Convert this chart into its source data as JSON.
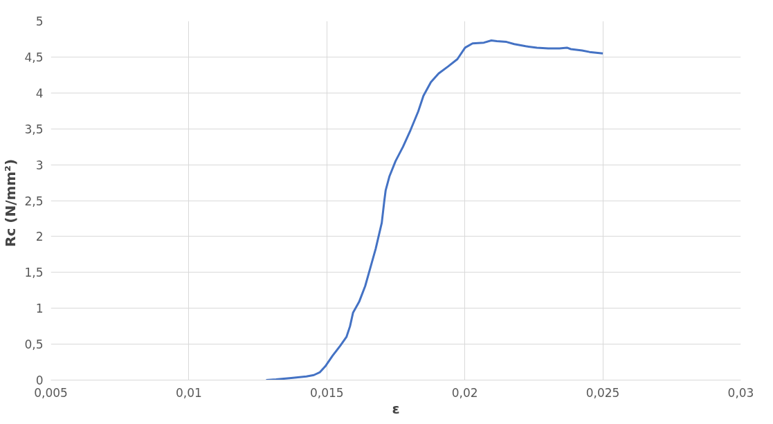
{
  "chart_data": {
    "type": "line",
    "xlabel": "ε",
    "ylabel": "Rc  (N/mm²)",
    "xlim": [
      0.005,
      0.03
    ],
    "ylim": [
      0,
      5
    ],
    "xticks": [
      {
        "value": 0.005,
        "label": "0,005"
      },
      {
        "value": 0.01,
        "label": "0,01"
      },
      {
        "value": 0.015,
        "label": "0,015"
      },
      {
        "value": 0.02,
        "label": "0,02"
      },
      {
        "value": 0.025,
        "label": "0,025"
      },
      {
        "value": 0.03,
        "label": "0,03"
      }
    ],
    "yticks": [
      0,
      {
        "value": 0.5,
        "label": "0,5"
      },
      1,
      {
        "value": 1.5,
        "label": "1,5"
      },
      2,
      {
        "value": 2.5,
        "label": "2,5"
      },
      3,
      {
        "value": 3.5,
        "label": "3,5"
      },
      4,
      {
        "value": 4.5,
        "label": "4,5"
      },
      5
    ],
    "grid": true,
    "marker": "none",
    "line_style": "solid",
    "series": [
      {
        "color": "#4472c4",
        "x": [
          0.0128,
          0.01316,
          0.01371,
          0.01426,
          0.01453,
          0.01475,
          0.01494,
          0.01521,
          0.01549,
          0.01571,
          0.01584,
          0.01595,
          0.01617,
          0.01639,
          0.01658,
          0.01677,
          0.01699,
          0.01708,
          0.01713,
          0.01727,
          0.01749,
          0.01776,
          0.01803,
          0.01831,
          0.0185,
          0.01877,
          0.01905,
          0.0194,
          0.01973,
          0.02001,
          0.02028,
          0.02069,
          0.02096,
          0.02116,
          0.02151,
          0.02179,
          0.0222,
          0.02261,
          0.02302,
          0.02343,
          0.0237,
          0.02384,
          0.02425,
          0.02452,
          0.025
        ],
        "values": [
          0,
          0.01,
          0.03,
          0.05,
          0.07,
          0.11,
          0.19,
          0.34,
          0.48,
          0.6,
          0.75,
          0.94,
          1.09,
          1.31,
          1.57,
          1.83,
          2.19,
          2.49,
          2.64,
          2.84,
          3.05,
          3.25,
          3.48,
          3.74,
          3.96,
          4.15,
          4.27,
          4.37,
          4.47,
          4.63,
          4.69,
          4.7,
          4.73,
          4.72,
          4.71,
          4.68,
          4.65,
          4.63,
          4.62,
          4.62,
          4.63,
          4.61,
          4.59,
          4.57,
          4.55
        ]
      }
    ]
  }
}
